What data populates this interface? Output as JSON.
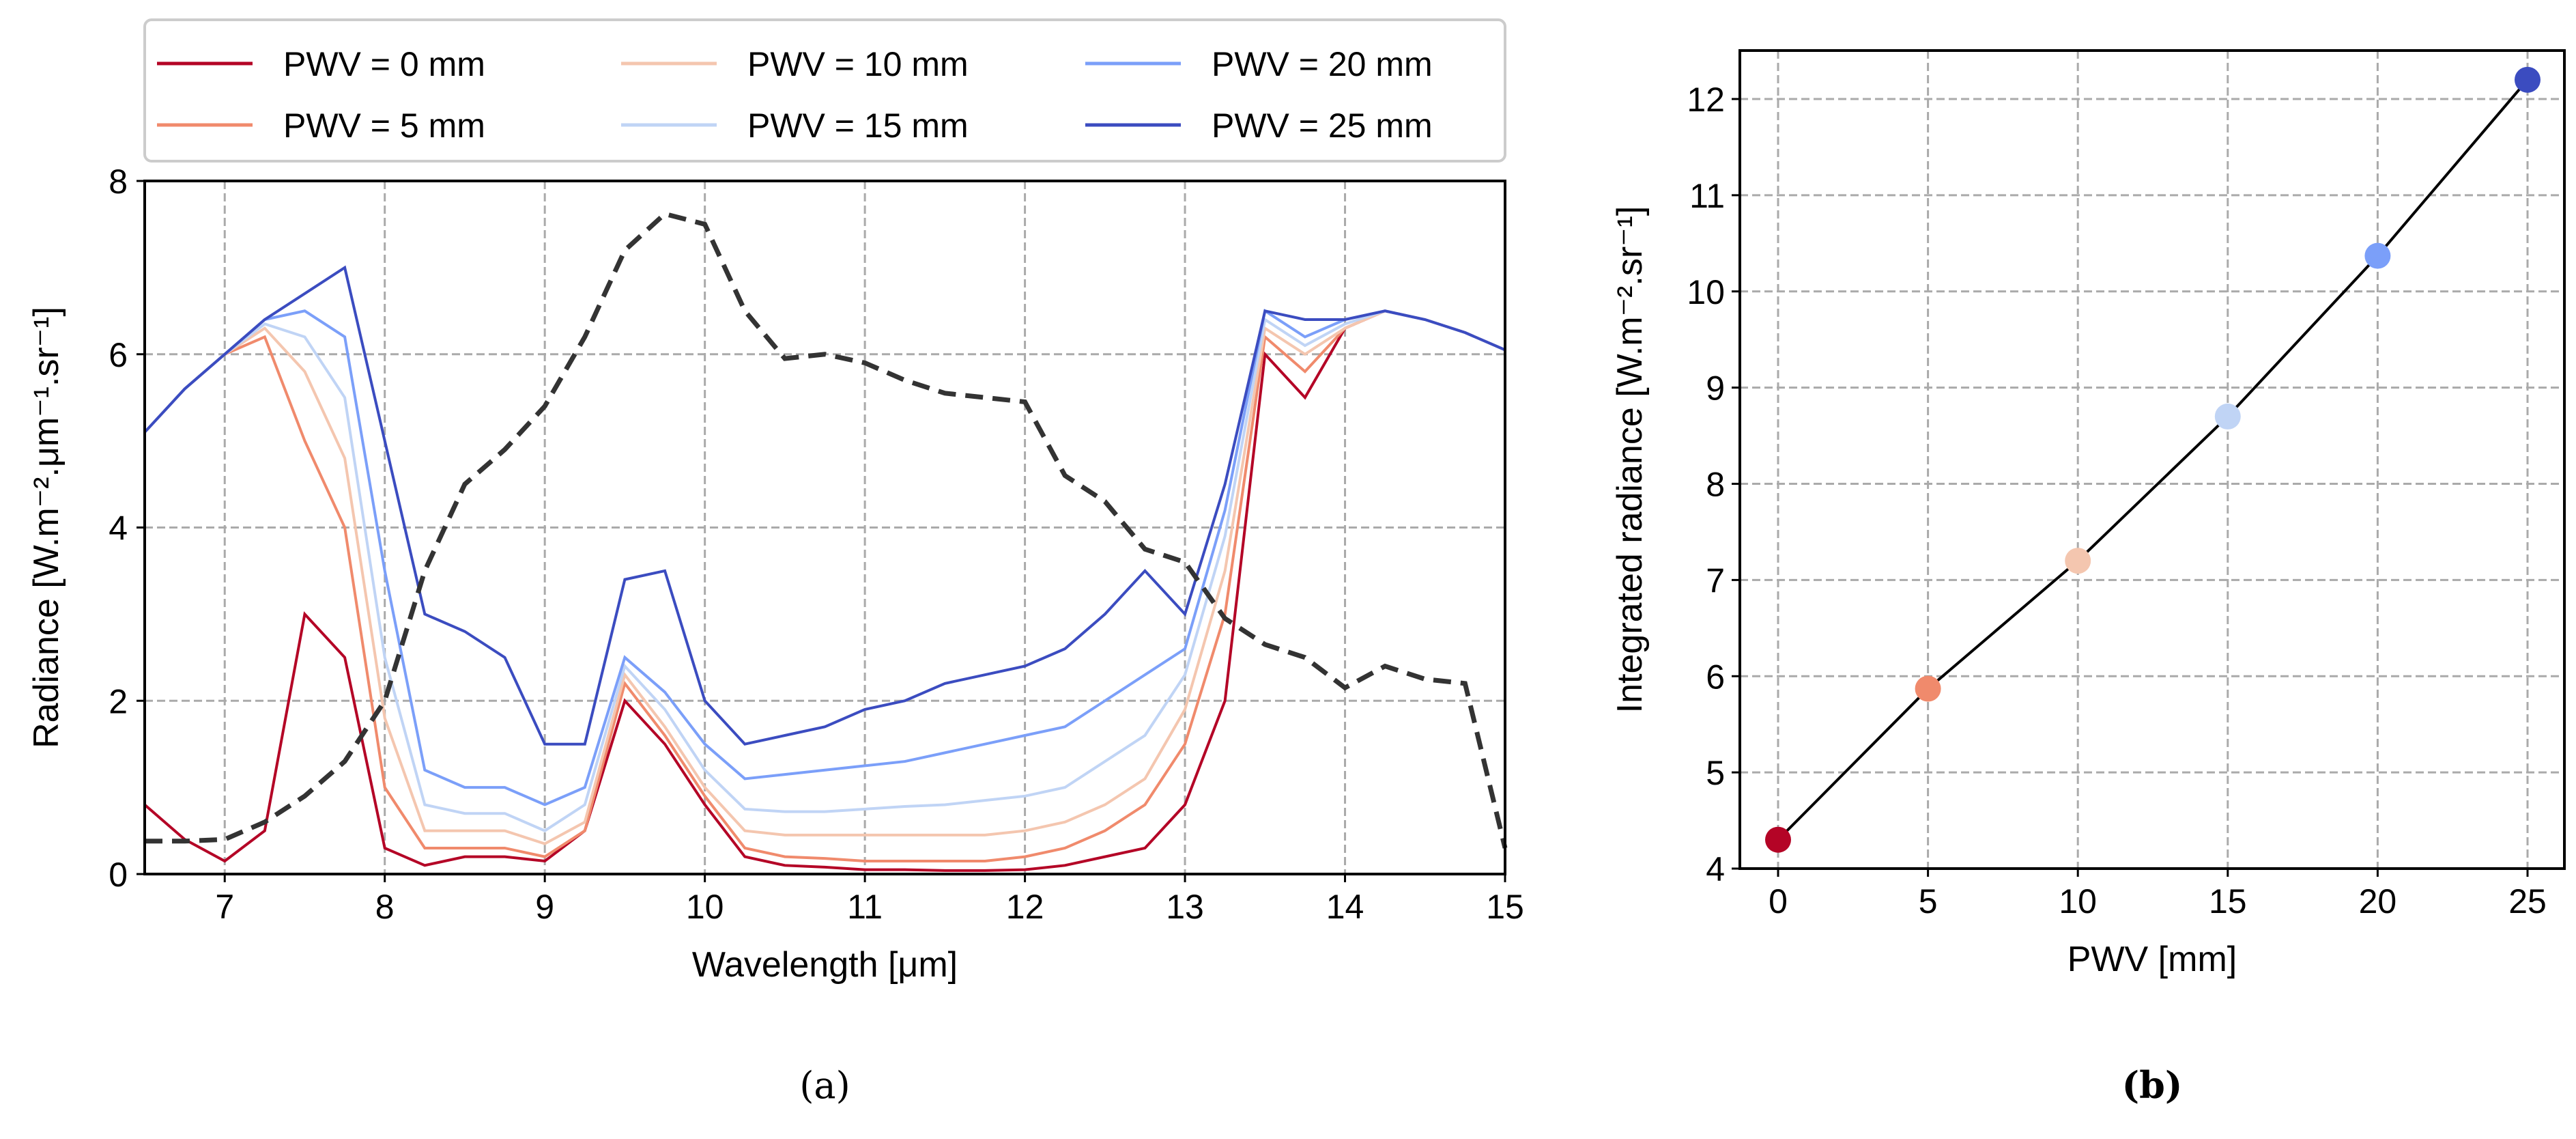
{
  "chart_data": [
    {
      "type": "line",
      "panel_label": "(a)",
      "xlabel": "Wavelength [μm]",
      "ylabel": "Radiance [W.m⁻².μm⁻¹.sr⁻¹]",
      "xlim": [
        6.5,
        15
      ],
      "ylim": [
        0,
        8
      ],
      "xticks": [
        7,
        8,
        9,
        10,
        11,
        12,
        13,
        14,
        15
      ],
      "yticks": [
        0,
        2,
        4,
        6,
        8
      ],
      "grid": true,
      "legend_position": "top, above plot",
      "x": [
        6.5,
        6.75,
        7,
        7.25,
        7.5,
        7.75,
        8,
        8.25,
        8.5,
        8.75,
        9,
        9.25,
        9.5,
        9.75,
        10,
        10.25,
        10.5,
        10.75,
        11,
        11.25,
        11.5,
        11.75,
        12,
        12.25,
        12.5,
        12.75,
        13,
        13.25,
        13.5,
        13.75,
        14,
        14.25,
        14.5,
        14.75,
        15
      ],
      "series": [
        {
          "name": "PWV = 0 mm",
          "color": "#b40426",
          "values": [
            0.8,
            0.4,
            0.15,
            0.5,
            3,
            2.5,
            0.3,
            0.1,
            0.2,
            0.2,
            0.15,
            0.5,
            2,
            1.5,
            0.8,
            0.2,
            0.1,
            0.08,
            0.05,
            0.05,
            0.04,
            0.04,
            0.05,
            0.1,
            0.2,
            0.3,
            0.8,
            2,
            6,
            5.5,
            6.3,
            6.5,
            6.4,
            6.25,
            6.05
          ]
        },
        {
          "name": "PWV = 5 mm",
          "color": "#f08a6c",
          "values": [
            5.1,
            5.6,
            6.0,
            6.2,
            5,
            4,
            1,
            0.3,
            0.3,
            0.3,
            0.2,
            0.5,
            2.2,
            1.6,
            0.9,
            0.3,
            0.2,
            0.18,
            0.15,
            0.15,
            0.15,
            0.15,
            0.2,
            0.3,
            0.5,
            0.8,
            1.5,
            3,
            6.2,
            5.8,
            6.3,
            6.5,
            6.4,
            6.25,
            6.05
          ]
        },
        {
          "name": "PWV = 10 mm",
          "color": "#f4c6af",
          "values": [
            5.1,
            5.6,
            6.0,
            6.3,
            5.8,
            4.8,
            1.8,
            0.5,
            0.5,
            0.5,
            0.35,
            0.6,
            2.3,
            1.7,
            1.0,
            0.5,
            0.45,
            0.45,
            0.45,
            0.45,
            0.45,
            0.45,
            0.5,
            0.6,
            0.8,
            1.1,
            1.9,
            3.5,
            6.3,
            6.0,
            6.3,
            6.5,
            6.4,
            6.25,
            6.05
          ]
        },
        {
          "name": "PWV = 15 mm",
          "color": "#c0d4f5",
          "values": [
            5.1,
            5.6,
            6.0,
            6.35,
            6.2,
            5.5,
            2.5,
            0.8,
            0.7,
            0.7,
            0.5,
            0.8,
            2.4,
            1.9,
            1.2,
            0.75,
            0.72,
            0.72,
            0.75,
            0.78,
            0.8,
            0.85,
            0.9,
            1.0,
            1.3,
            1.6,
            2.3,
            3.9,
            6.4,
            6.1,
            6.35,
            6.5,
            6.4,
            6.25,
            6.05
          ]
        },
        {
          "name": "PWV = 20 mm",
          "color": "#7b9ff9",
          "values": [
            5.1,
            5.6,
            6.0,
            6.4,
            6.5,
            6.2,
            3.5,
            1.2,
            1.0,
            1.0,
            0.8,
            1.0,
            2.5,
            2.1,
            1.5,
            1.1,
            1.15,
            1.2,
            1.25,
            1.3,
            1.4,
            1.5,
            1.6,
            1.7,
            2.0,
            2.3,
            2.6,
            4.2,
            6.5,
            6.2,
            6.4,
            6.5,
            6.4,
            6.25,
            6.05
          ]
        },
        {
          "name": "PWV = 25 mm",
          "color": "#3b4cc0",
          "values": [
            5.1,
            5.6,
            6.0,
            6.4,
            6.7,
            7.0,
            5,
            3,
            2.8,
            2.5,
            1.5,
            1.5,
            3.4,
            3.5,
            2,
            1.5,
            1.6,
            1.7,
            1.9,
            2.0,
            2.2,
            2.3,
            2.4,
            2.6,
            3,
            3.5,
            3,
            4.5,
            6.5,
            6.4,
            6.4,
            6.5,
            6.4,
            6.25,
            6.05
          ]
        },
        {
          "name": "",
          "color": "#333333",
          "dashed": true,
          "values": [
            0.38,
            0.38,
            0.4,
            0.6,
            0.9,
            1.3,
            2,
            3.5,
            4.5,
            4.9,
            5.4,
            6.2,
            7.2,
            7.62,
            7.5,
            6.5,
            5.95,
            6.0,
            5.9,
            5.7,
            5.55,
            5.5,
            5.45,
            4.6,
            4.3,
            3.75,
            3.6,
            2.95,
            2.65,
            2.5,
            2.15,
            2.4,
            2.25,
            2.2,
            0.3
          ]
        }
      ]
    },
    {
      "type": "scatter",
      "panel_label": "(b)",
      "xlabel": "PWV [mm]",
      "ylabel": "Integrated radiance [W.m⁻².sr⁻¹]",
      "xlim": [
        -1.25,
        26.25
      ],
      "ylim": [
        4,
        12.5
      ],
      "xticks": [
        0,
        5,
        10,
        15,
        20,
        25
      ],
      "yticks": [
        4,
        5,
        6,
        7,
        8,
        9,
        10,
        11,
        12
      ],
      "grid": true,
      "x": [
        0,
        5,
        10,
        15,
        20,
        25
      ],
      "values": [
        4.3,
        5.87,
        7.2,
        8.7,
        10.37,
        12.2
      ],
      "colors": [
        "#b40426",
        "#f08a6c",
        "#f4c6af",
        "#c0d4f5",
        "#7b9ff9",
        "#3b4cc0"
      ]
    }
  ]
}
